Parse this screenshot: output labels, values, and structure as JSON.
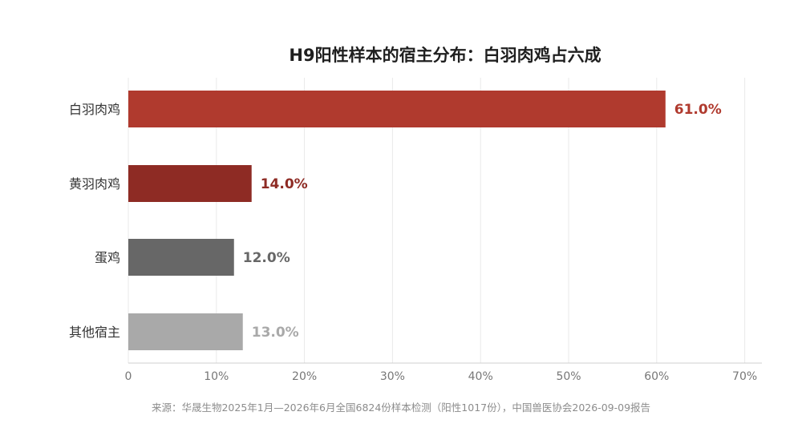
{
  "chart_data": {
    "type": "bar",
    "orientation": "horizontal",
    "title": "H9阳性样本的宿主分布：白羽肉鸡占六成",
    "categories": [
      "白羽肉鸡",
      "黄羽肉鸡",
      "蛋鸡",
      "其他宿主"
    ],
    "values": [
      61.0,
      14.0,
      12.0,
      13.0
    ],
    "value_labels": [
      "61.0%",
      "14.0%",
      "12.0%",
      "13.0%"
    ],
    "bar_colors": [
      "#b03a2e",
      "#8e2b24",
      "#676767",
      "#a9a9a9"
    ],
    "xlim": [
      0,
      70
    ],
    "x_ticks": [
      0,
      10,
      20,
      30,
      40,
      50,
      60,
      70
    ],
    "x_tick_labels": [
      "0",
      "10%",
      "20%",
      "30%",
      "40%",
      "50%",
      "60%",
      "70%"
    ],
    "grid": "vertical",
    "xlabel": "",
    "ylabel": ""
  },
  "source_note": "来源：华晟生物2025年1月—2026年6月全国6824份样本检测（阳性1017份），中国兽医协会2026-09-09报告"
}
